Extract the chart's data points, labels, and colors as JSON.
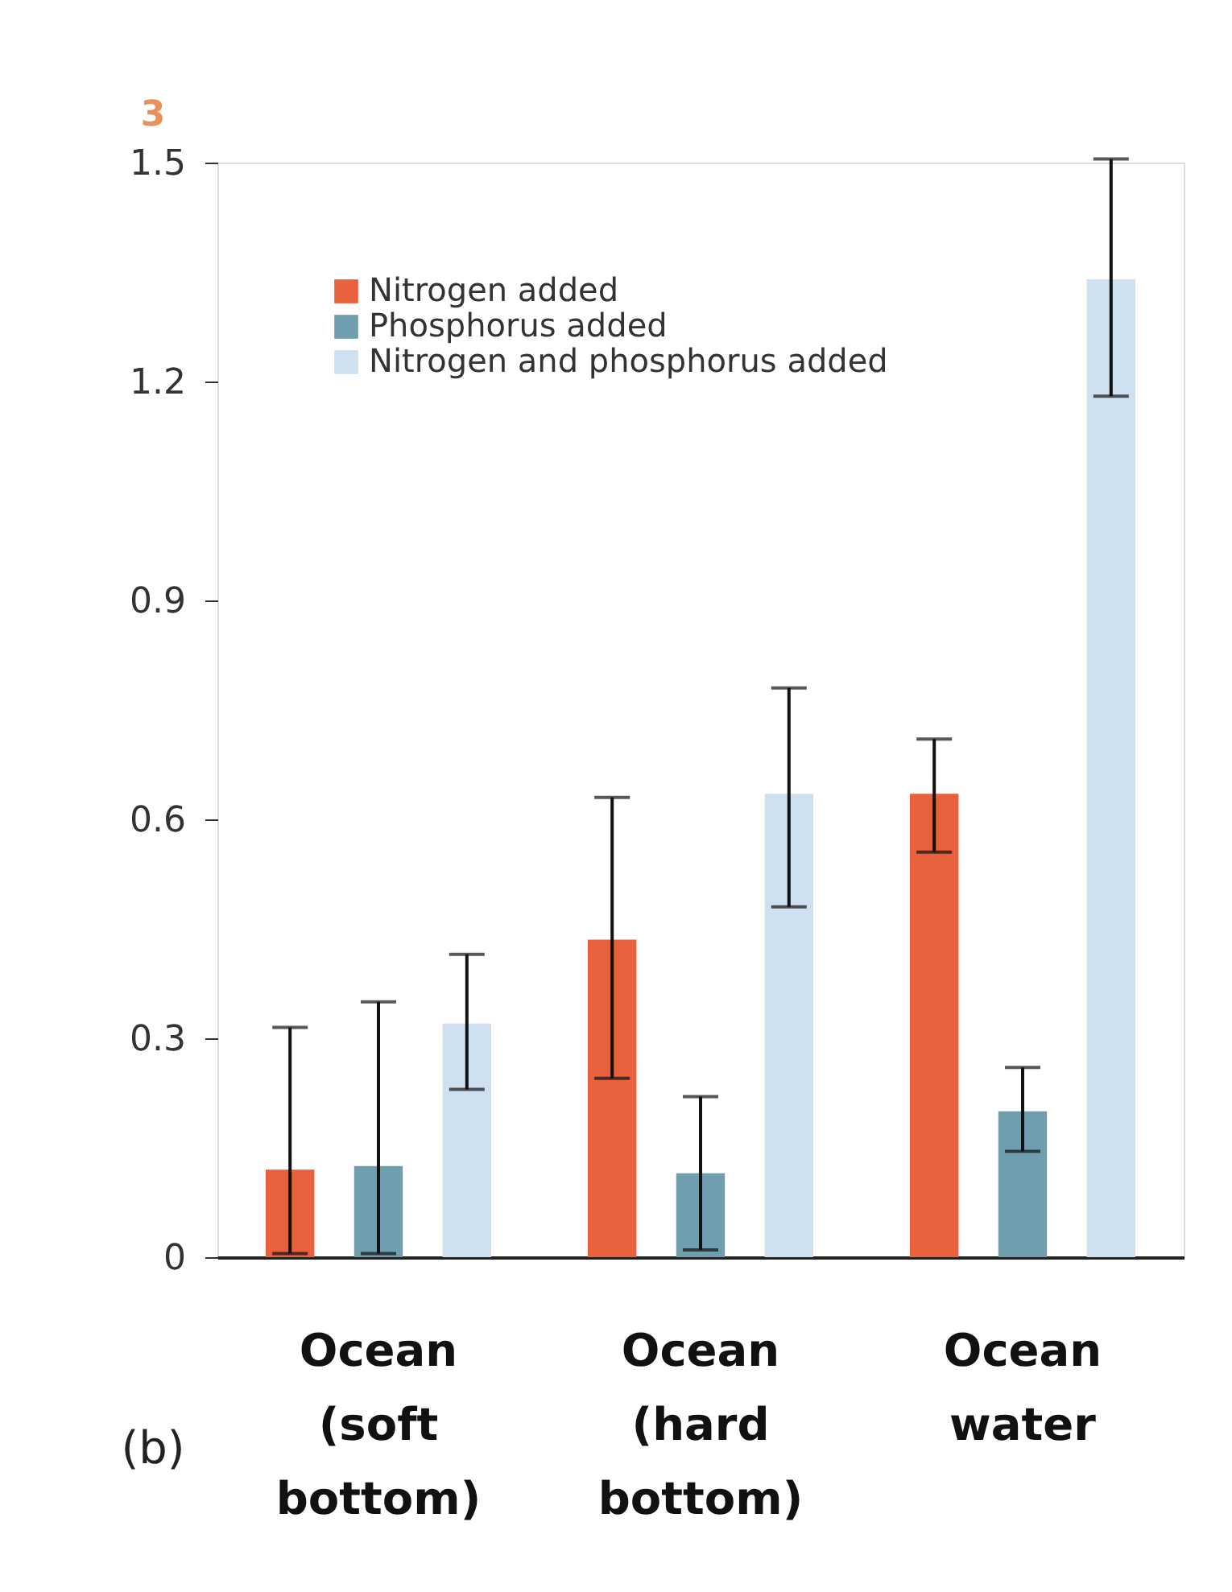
{
  "chart_data": {
    "type": "bar",
    "categories": [
      "Ocean\n(soft\nbottom)",
      "Ocean\n(hard\nbottom)",
      "Ocean\nwater"
    ],
    "series": [
      {
        "name": "Nitrogen added",
        "color": "#e8603c",
        "values": [
          0.12,
          0.435,
          0.635
        ],
        "errors": [
          [
            0.005,
            0.315
          ],
          [
            0.245,
            0.63
          ],
          [
            0.555,
            0.71
          ]
        ]
      },
      {
        "name": "Phosphorus added",
        "color": "#6f9fae",
        "values": [
          0.125,
          0.115,
          0.2
        ],
        "errors": [
          [
            0.005,
            0.35
          ],
          [
            0.01,
            0.22
          ],
          [
            0.145,
            0.26
          ]
        ]
      },
      {
        "name": "Nitrogen and phosphorus added",
        "color": "#cfe0f0",
        "values": [
          0.32,
          0.635,
          1.34
        ],
        "errors": [
          [
            0.23,
            0.415
          ],
          [
            0.48,
            0.78
          ],
          [
            1.18,
            1.505
          ]
        ]
      }
    ],
    "ylim": [
      0,
      1.5
    ],
    "yticks": [
      0,
      0.3,
      0.6,
      0.9,
      1.2,
      1.5
    ],
    "grid": false,
    "legend": "top left",
    "annotations": [
      "3",
      "(b)"
    ]
  }
}
